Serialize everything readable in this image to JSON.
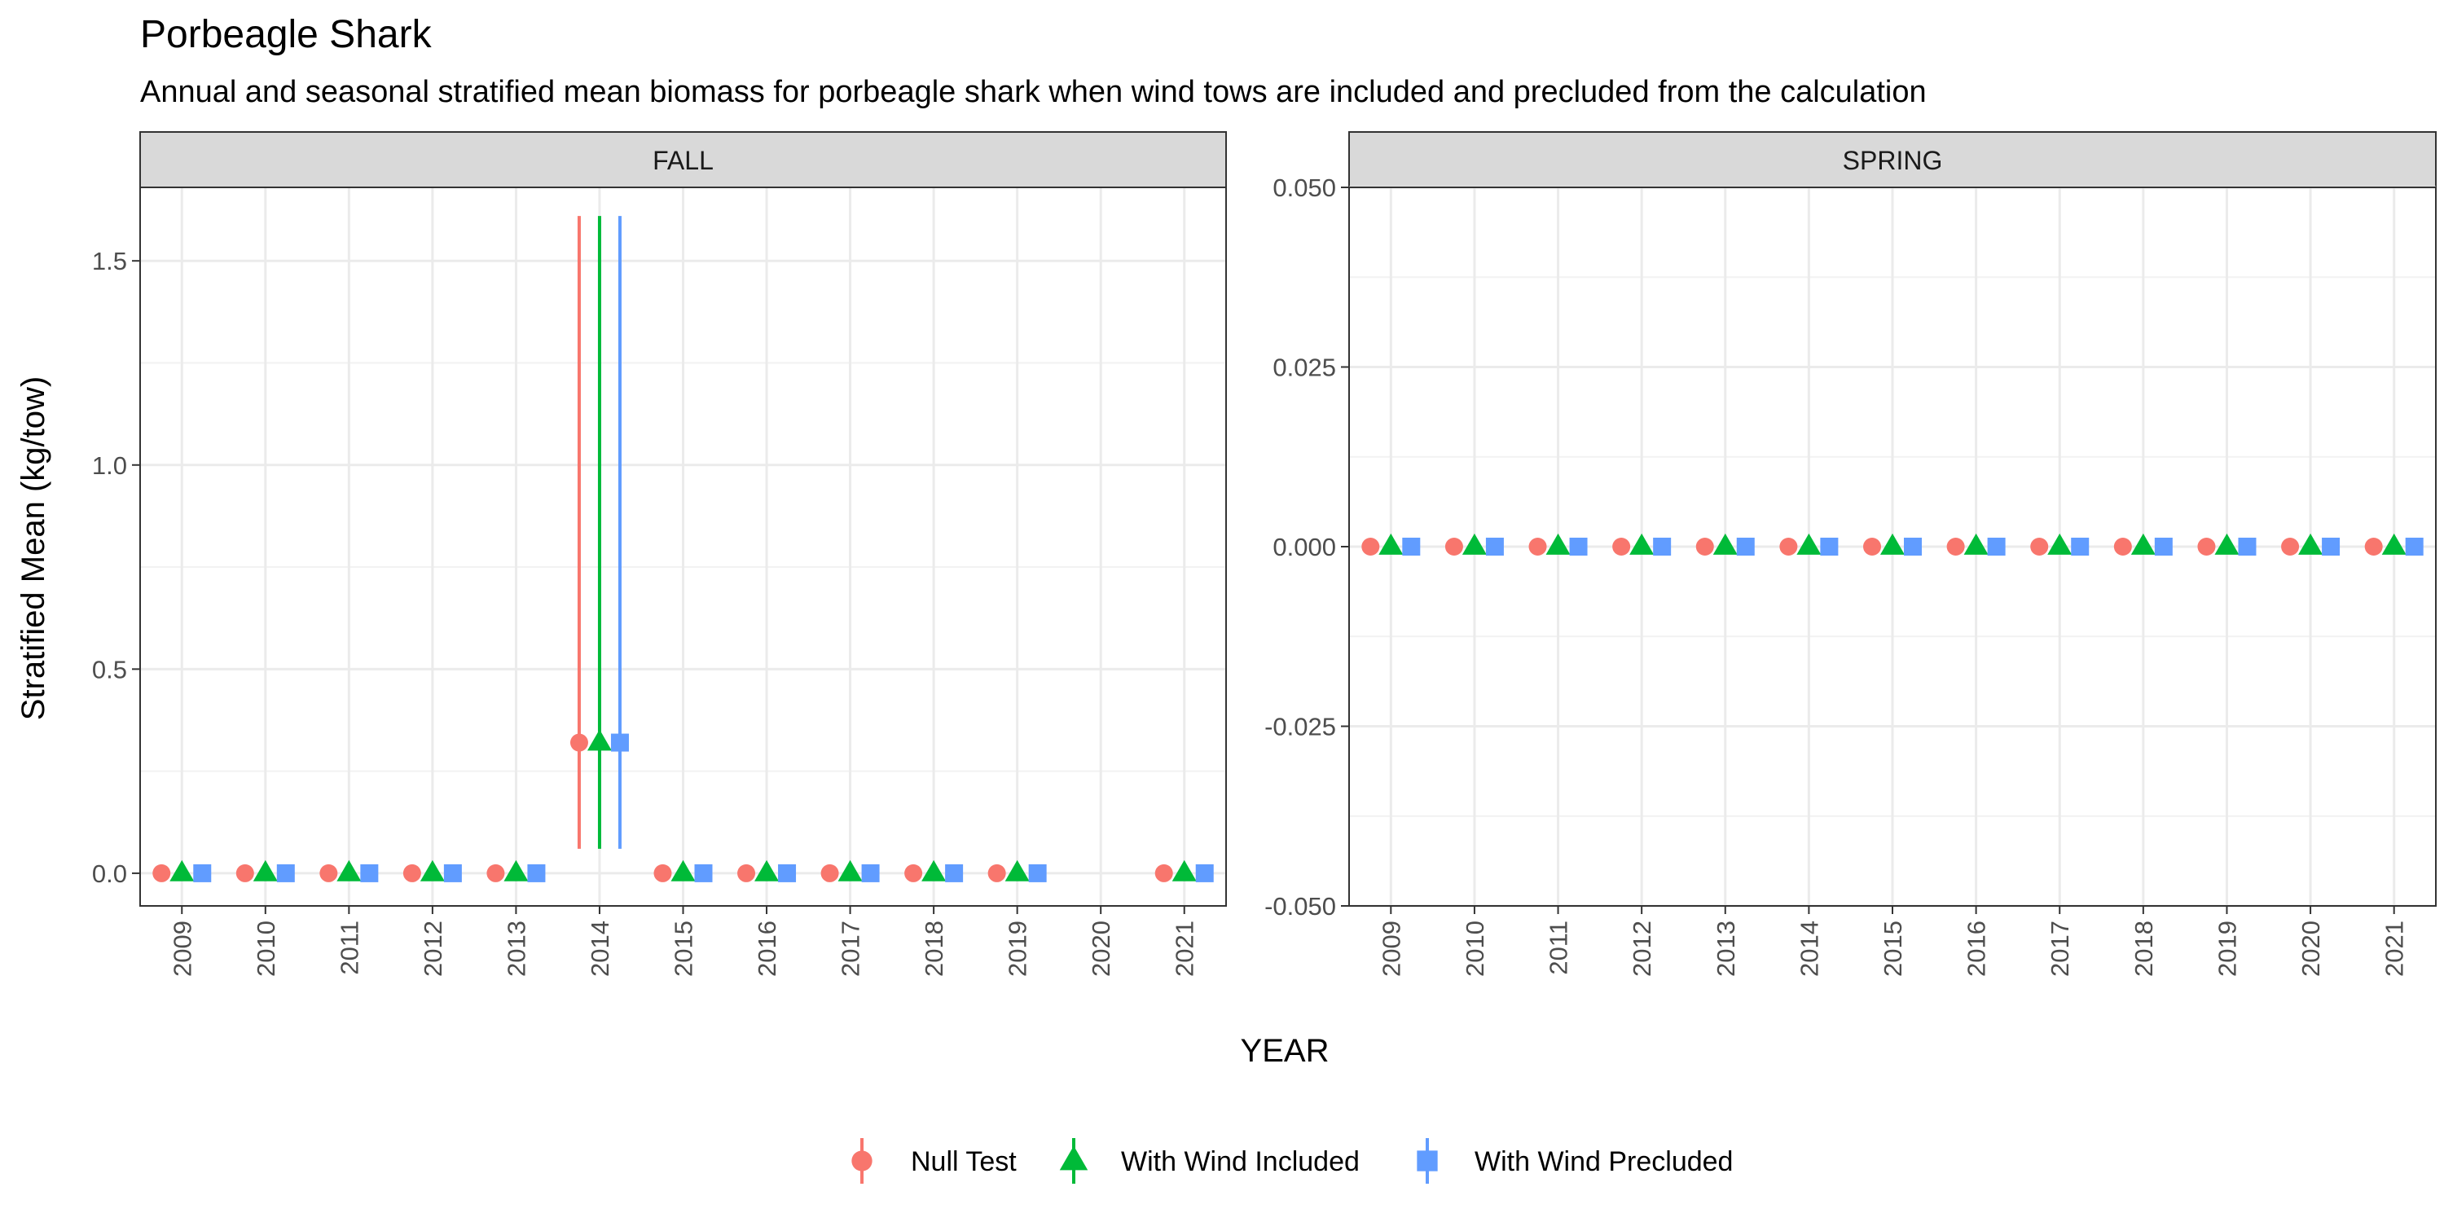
{
  "chart_data": {
    "type": "scatter",
    "title": "Porbeagle Shark",
    "subtitle": "Annual and seasonal stratified mean biomass for porbeagle shark when wind tows are included and precluded from the calculation",
    "xlabel": "YEAR",
    "ylabel": "Stratified Mean (kg/tow)",
    "grid": true,
    "legend_position": "bottom",
    "series": [
      {
        "name": "Null Test",
        "color": "#F8766D",
        "shape": "circle"
      },
      {
        "name": "With Wind Included",
        "color": "#00BA38",
        "shape": "triangle"
      },
      {
        "name": "With Wind Precluded",
        "color": "#619CFF",
        "shape": "square"
      }
    ],
    "panels": [
      {
        "name": "FALL",
        "ylim": [
          -0.08,
          1.68
        ],
        "yticks": [
          0.0,
          0.5,
          1.0,
          1.5
        ],
        "ytick_labels": [
          "0.0",
          "0.5",
          "1.0",
          "1.5"
        ],
        "x": [
          "2009",
          "2010",
          "2011",
          "2012",
          "2013",
          "2014",
          "2015",
          "2016",
          "2017",
          "2018",
          "2019",
          "2020",
          "2021"
        ],
        "values": {
          "Null Test": [
            0,
            0,
            0,
            0,
            0,
            0.32,
            0,
            0,
            0,
            0,
            0,
            null,
            0
          ],
          "With Wind Included": [
            0,
            0,
            0,
            0,
            0,
            0.32,
            0,
            0,
            0,
            0,
            0,
            null,
            0
          ],
          "With Wind Precluded": [
            0,
            0,
            0,
            0,
            0,
            0.32,
            0,
            0,
            0,
            0,
            0,
            null,
            0
          ]
        },
        "error_bars": {
          "Null Test": [
            [
              0.06,
              1.61
            ]
          ],
          "With Wind Included": [
            [
              0.06,
              1.61
            ]
          ],
          "With Wind Precluded": [
            [
              0.06,
              1.61
            ]
          ]
        },
        "error_bar_years": [
          "2014"
        ]
      },
      {
        "name": "SPRING",
        "ylim": [
          -0.05,
          0.05
        ],
        "yticks": [
          -0.05,
          -0.025,
          0.0,
          0.025,
          0.05
        ],
        "ytick_labels": [
          "-0.050",
          "-0.025",
          "0.000",
          "0.025",
          "0.050"
        ],
        "x": [
          "2009",
          "2010",
          "2011",
          "2012",
          "2013",
          "2014",
          "2015",
          "2016",
          "2017",
          "2018",
          "2019",
          "2020",
          "2021"
        ],
        "values": {
          "Null Test": [
            0,
            0,
            0,
            0,
            0,
            0,
            0,
            0,
            0,
            0,
            0,
            0,
            0
          ],
          "With Wind Included": [
            0,
            0,
            0,
            0,
            0,
            0,
            0,
            0,
            0,
            0,
            0,
            0,
            0
          ],
          "With Wind Precluded": [
            0,
            0,
            0,
            0,
            0,
            0,
            0,
            0,
            0,
            0,
            0,
            0,
            0
          ]
        },
        "error_bars": {},
        "error_bar_years": []
      }
    ]
  }
}
